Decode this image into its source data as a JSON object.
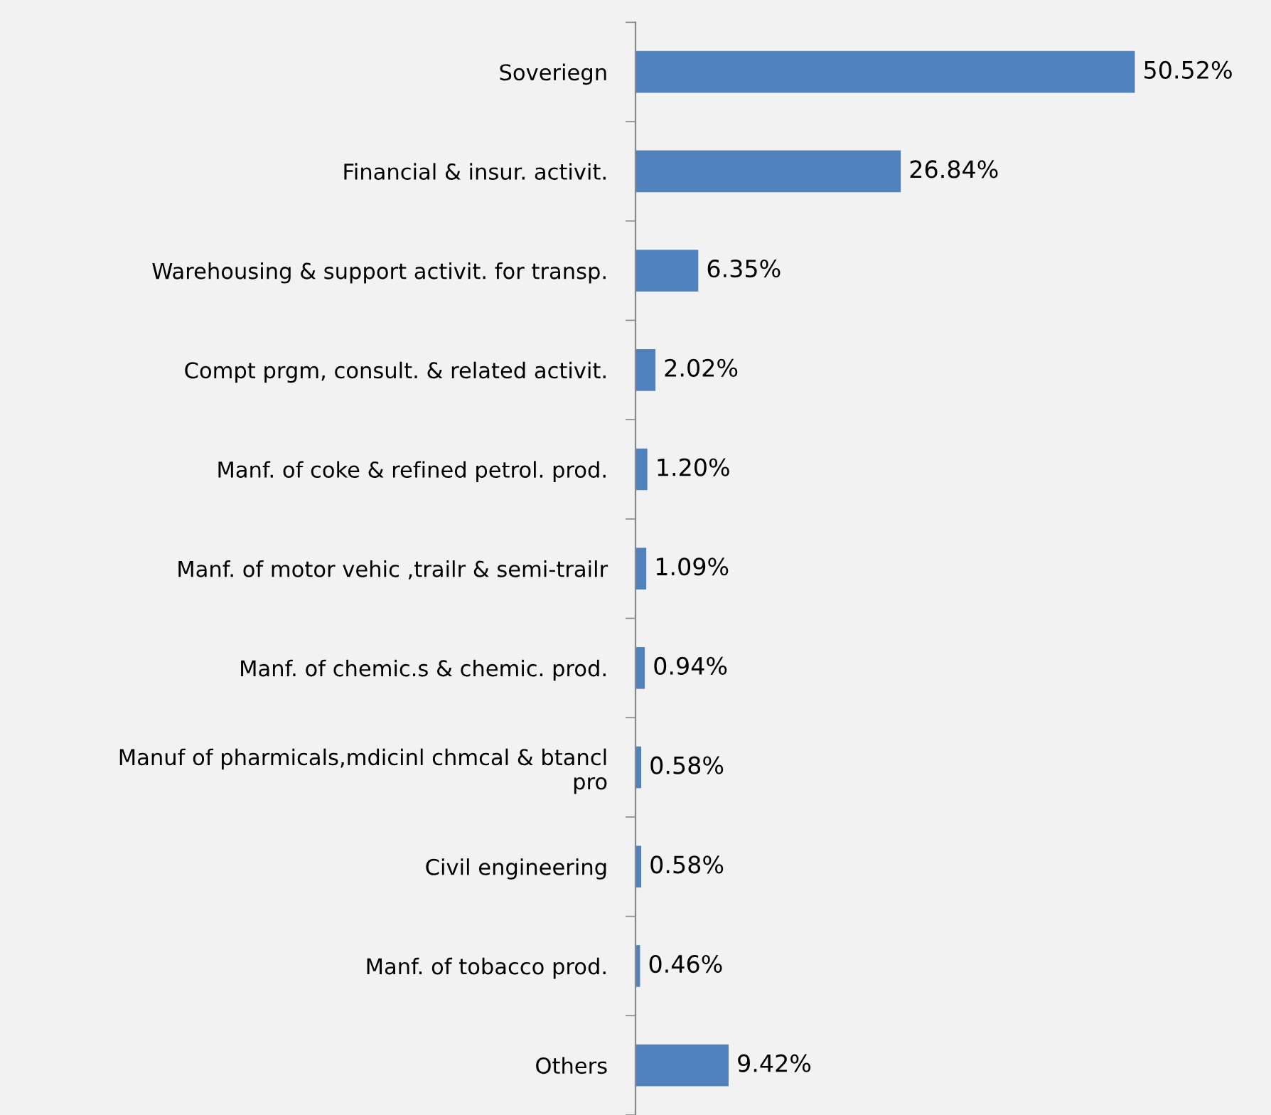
{
  "chart_data": {
    "type": "bar",
    "orientation": "horizontal",
    "color": "#4f81bd",
    "categories": [
      "Soveriegn",
      "Financial & insur. activit.",
      "Warehousing & support activit. for transp.",
      "Compt prgm, consult. & related activit.",
      "Manf. of coke & refined petrol. prod.",
      "Manf. of motor vehic ,trailr & semi-trailr",
      "Manf. of chemic.s & chemic. prod.",
      "Manuf of pharmicals,mdicinl chmcal & btancl\npro",
      "Civil engineering",
      "Manf. of tobacco prod.",
      "Others"
    ],
    "values": [
      50.52,
      26.84,
      6.35,
      2.02,
      1.2,
      1.09,
      0.94,
      0.58,
      0.58,
      0.46,
      9.42
    ],
    "value_labels": [
      "50.52%",
      "26.84%",
      "6.35%",
      "2.02%",
      "1.20%",
      "1.09%",
      "0.94%",
      "0.58%",
      "0.58%",
      "0.46%",
      "9.42%"
    ],
    "grid": false,
    "legend": false
  }
}
